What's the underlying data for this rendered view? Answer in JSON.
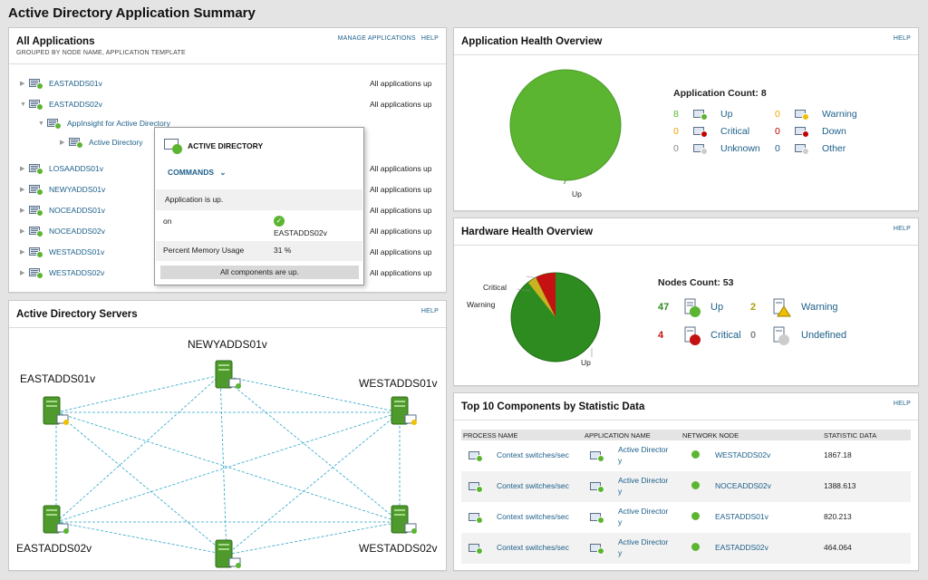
{
  "page_title": "Active Directory Application Summary",
  "all_apps": {
    "title": "All Applications",
    "subtitle": "GROUPED BY NODE NAME, APPLICATION TEMPLATE",
    "link_manage": "MANAGE APPLICATIONS",
    "link_help": "HELP",
    "nodes": [
      {
        "name": "EASTADDS01v",
        "status": "All applications up"
      },
      {
        "name": "EASTADDS02v",
        "status": "All applications up"
      },
      {
        "name": "LOSAADDS01v",
        "status": "All applications up"
      },
      {
        "name": "NEWYADDS01v",
        "status": "All applications up"
      },
      {
        "name": "NOCEADDS01v",
        "status": "All applications up"
      },
      {
        "name": "NOCEADDS02v",
        "status": "All applications up"
      },
      {
        "name": "WESTADDS01v",
        "status": "All applications up"
      },
      {
        "name": "WESTADDS02v",
        "status": "All applications up"
      }
    ],
    "template": "AppInsight for Active Directory",
    "app": "Active Directory"
  },
  "popup": {
    "title": "ACTIVE DIRECTORY",
    "commands": "COMMANDS",
    "status": "Application is up.",
    "on_label": "on",
    "on_value": "EASTADDS02v",
    "mem_label": "Percent Memory Usage",
    "mem_value": "31 %",
    "footer": "All components are up."
  },
  "servers": {
    "title": "Active Directory Servers",
    "help": "HELP",
    "labels": {
      "top": "NEWYADDS01v",
      "left_top": "EASTADDS01v",
      "right_top": "WESTADDS01v",
      "left_bottom": "EASTADDS02v",
      "right_bottom": "WESTADDS02v"
    }
  },
  "app_health": {
    "title": "Application Health Overview",
    "help": "HELP",
    "count_label": "Application Count: 8",
    "pie_label": "Up",
    "items": [
      {
        "num": "8",
        "label": "Up",
        "color": "#5bb531"
      },
      {
        "num": "0",
        "label": "Warning",
        "color": "#f0c000"
      },
      {
        "num": "0",
        "label": "Critical",
        "color": "#c00000"
      },
      {
        "num": "0",
        "label": "Down",
        "color": "#c00000"
      },
      {
        "num": "0",
        "label": "Unknown",
        "color": "#cccccc"
      },
      {
        "num": "0",
        "label": "Other",
        "color": "#cccccc"
      }
    ]
  },
  "hw_health": {
    "title": "Hardware Health Overview",
    "help": "HELP",
    "count_label": "Nodes Count: 53",
    "pie_labels": {
      "critical": "Critical",
      "warning": "Warning",
      "up": "Up"
    },
    "items": [
      {
        "num": "47",
        "label": "Up"
      },
      {
        "num": "2",
        "label": "Warning"
      },
      {
        "num": "4",
        "label": "Critical"
      },
      {
        "num": "0",
        "label": "Undefined"
      }
    ]
  },
  "top10": {
    "title": "Top 10 Components by Statistic Data",
    "help": "HELP",
    "headers": [
      "PROCESS NAME",
      "APPLICATION NAME",
      "NETWORK NODE",
      "STATISTIC DATA"
    ],
    "rows": [
      {
        "process": "Context switches/sec",
        "app": "Active Director",
        "app2": "y",
        "node": "WESTADDS02v",
        "value": "1867.18"
      },
      {
        "process": "Context switches/sec",
        "app": "Active Director",
        "app2": "y",
        "node": "NOCEADDS02v",
        "value": "1388.613"
      },
      {
        "process": "Context switches/sec",
        "app": "Active Director",
        "app2": "y",
        "node": "EASTADDS01v",
        "value": "820.213"
      },
      {
        "process": "Context switches/sec",
        "app": "Active Director",
        "app2": "y",
        "node": "EASTADDS02v",
        "value": "464.064"
      }
    ]
  }
}
